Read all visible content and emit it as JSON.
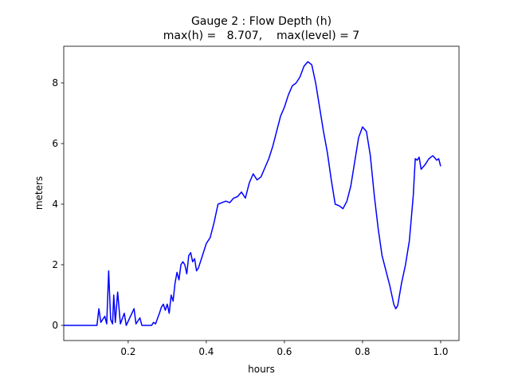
{
  "chart_data": {
    "type": "line",
    "title": "Gauge 2 : Flow Depth (h)",
    "subtitle": "max(h) =   8.707,    max(level) = 7",
    "x_label": "hours",
    "y_label": "meters",
    "color": "#0000ff",
    "x": [
      0.035,
      0.12,
      0.125,
      0.13,
      0.14,
      0.145,
      0.15,
      0.155,
      0.16,
      0.163,
      0.167,
      0.173,
      0.18,
      0.19,
      0.195,
      0.215,
      0.22,
      0.23,
      0.235,
      0.26,
      0.265,
      0.27,
      0.28,
      0.285,
      0.29,
      0.295,
      0.3,
      0.305,
      0.31,
      0.315,
      0.32,
      0.325,
      0.33,
      0.335,
      0.34,
      0.345,
      0.35,
      0.355,
      0.36,
      0.365,
      0.37,
      0.375,
      0.38,
      0.39,
      0.4,
      0.41,
      0.42,
      0.43,
      0.44,
      0.45,
      0.46,
      0.47,
      0.48,
      0.49,
      0.5,
      0.51,
      0.52,
      0.53,
      0.54,
      0.55,
      0.56,
      0.57,
      0.58,
      0.59,
      0.6,
      0.61,
      0.62,
      0.63,
      0.64,
      0.65,
      0.66,
      0.67,
      0.68,
      0.69,
      0.7,
      0.71,
      0.72,
      0.73,
      0.74,
      0.75,
      0.76,
      0.77,
      0.78,
      0.79,
      0.8,
      0.81,
      0.82,
      0.83,
      0.84,
      0.85,
      0.86,
      0.87,
      0.88,
      0.885,
      0.89,
      0.9,
      0.91,
      0.92,
      0.93,
      0.935,
      0.94,
      0.945,
      0.95,
      0.96,
      0.97,
      0.98,
      0.99,
      0.995,
      1.0
    ],
    "values": [
      0,
      0,
      0.55,
      0.1,
      0.3,
      0.05,
      1.8,
      0.2,
      0.05,
      1.0,
      0.1,
      1.1,
      0.05,
      0.4,
      0,
      0.55,
      0.05,
      0.25,
      0,
      0,
      0.1,
      0.05,
      0.4,
      0.6,
      0.7,
      0.5,
      0.7,
      0.4,
      1.0,
      0.8,
      1.4,
      1.75,
      1.5,
      2.0,
      2.1,
      2.0,
      1.7,
      2.3,
      2.4,
      2.1,
      2.2,
      1.8,
      1.9,
      2.3,
      2.7,
      2.9,
      3.4,
      4.0,
      4.05,
      4.1,
      4.05,
      4.2,
      4.25,
      4.4,
      4.2,
      4.7,
      5.0,
      4.8,
      4.9,
      5.2,
      5.5,
      5.9,
      6.4,
      6.9,
      7.2,
      7.6,
      7.9,
      8.0,
      8.2,
      8.55,
      8.7,
      8.6,
      8.0,
      7.2,
      6.4,
      5.7,
      4.8,
      4.0,
      3.95,
      3.85,
      4.1,
      4.6,
      5.4,
      6.2,
      6.55,
      6.4,
      5.6,
      4.3,
      3.2,
      2.3,
      1.8,
      1.3,
      0.7,
      0.55,
      0.65,
      1.4,
      2.0,
      2.8,
      4.3,
      5.5,
      5.45,
      5.55,
      5.15,
      5.3,
      5.5,
      5.6,
      5.45,
      5.5,
      5.25
    ],
    "xlim": [
      0.035,
      1.047
    ],
    "ylim": [
      -0.5,
      9.21
    ],
    "xticks": [
      0.2,
      0.4,
      0.6,
      0.8,
      {
        "value": 1,
        "label": "1.0"
      }
    ],
    "yticks": [
      0,
      2,
      4,
      6,
      8
    ]
  }
}
